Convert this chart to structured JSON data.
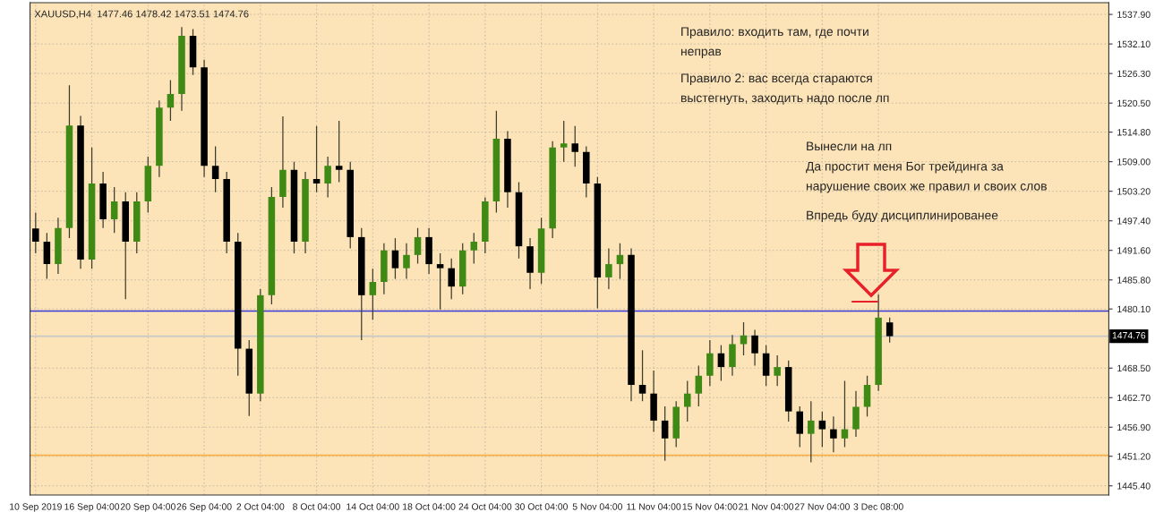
{
  "chart_data": {
    "type": "candlestick",
    "title": "XAUUSD,H4  1477.46 1478.42 1473.51 1474.76",
    "categories": [
      "10 Sep 2019",
      null,
      null,
      null,
      null,
      "16 Sep 04:00",
      null,
      null,
      null,
      null,
      "20 Sep 04:00",
      null,
      null,
      null,
      null,
      "26 Sep 04:00",
      null,
      null,
      null,
      null,
      "2 Oct 04:00",
      null,
      null,
      null,
      null,
      "8 Oct 04:00",
      null,
      null,
      null,
      null,
      "14 Oct 04:00",
      null,
      null,
      null,
      null,
      "18 Oct 04:00",
      null,
      null,
      null,
      null,
      "24 Oct 04:00",
      null,
      null,
      null,
      null,
      "30 Oct 04:00",
      null,
      null,
      null,
      null,
      "5 Nov 04:00",
      null,
      null,
      null,
      null,
      "11 Nov 04:00",
      null,
      null,
      null,
      null,
      "15 Nov 04:00",
      null,
      null,
      null,
      null,
      "21 Nov 04:00",
      null,
      null,
      null,
      null,
      "27 Nov 04:00",
      null,
      null,
      null,
      null,
      "3 Dec 08:00",
      null,
      null,
      null,
      null,
      null,
      null,
      null,
      null,
      null,
      null,
      null,
      null,
      null,
      null,
      null,
      null,
      null,
      null,
      null,
      null
    ],
    "ohlc": [
      [
        1495.9,
        1499,
        1491,
        1493.3
      ],
      [
        1493.3,
        1495,
        1486,
        1488.9
      ],
      [
        1488.9,
        1498,
        1487,
        1496.0
      ],
      [
        1496.0,
        1524.0,
        1494,
        1516.1
      ],
      [
        1516.1,
        1518,
        1488,
        1489.8
      ],
      [
        1489.8,
        1511.8,
        1488,
        1504.7
      ],
      [
        1504.7,
        1507,
        1496,
        1497.7
      ],
      [
        1497.7,
        1504,
        1495,
        1501.2
      ],
      [
        1501.2,
        1503,
        1482,
        1493.3
      ],
      [
        1493.3,
        1503,
        1491,
        1501.2
      ],
      [
        1501.2,
        1510,
        1499,
        1508.2
      ],
      [
        1508.2,
        1521,
        1506,
        1519.6
      ],
      [
        1519.6,
        1525,
        1517,
        1522.3
      ],
      [
        1522.3,
        1535.4,
        1519,
        1533.7
      ],
      [
        1533.7,
        1535,
        1526,
        1527.5
      ],
      [
        1527.5,
        1529,
        1506,
        1508.2
      ],
      [
        1508.2,
        1512,
        1503,
        1505.6
      ],
      [
        1505.6,
        1507,
        1491,
        1493.3
      ],
      [
        1493.3,
        1495,
        1467,
        1472.3
      ],
      [
        1472.3,
        1474,
        1459.1,
        1463.5
      ],
      [
        1463.5,
        1484,
        1462,
        1482.8
      ],
      [
        1482.8,
        1504,
        1481,
        1502.1
      ],
      [
        1502.1,
        1517.9,
        1500,
        1507.4
      ],
      [
        1507.4,
        1509,
        1491,
        1493.3
      ],
      [
        1493.3,
        1507,
        1491,
        1505.6
      ],
      [
        1505.6,
        1516,
        1503,
        1504.7
      ],
      [
        1504.7,
        1510,
        1502,
        1508.2
      ],
      [
        1508.2,
        1517,
        1505,
        1507.4
      ],
      [
        1507.4,
        1509,
        1492,
        1494.2
      ],
      [
        1494.2,
        1496,
        1474,
        1482.8
      ],
      [
        1482.8,
        1488,
        1478,
        1485.4
      ],
      [
        1485.4,
        1493,
        1483,
        1491.6
      ],
      [
        1491.6,
        1494,
        1486,
        1488.1
      ],
      [
        1488.1,
        1493,
        1486,
        1490.7
      ],
      [
        1490.7,
        1496,
        1489,
        1494.2
      ],
      [
        1494.2,
        1496,
        1487,
        1488.9
      ],
      [
        1488.9,
        1491,
        1480,
        1488.1
      ],
      [
        1488.1,
        1490,
        1482,
        1484.5
      ],
      [
        1484.5,
        1493,
        1483,
        1491.6
      ],
      [
        1491.6,
        1495,
        1489,
        1493.3
      ],
      [
        1493.3,
        1502,
        1491,
        1501.2
      ],
      [
        1501.2,
        1519,
        1499,
        1513.5
      ],
      [
        1513.5,
        1515,
        1500,
        1503.0
      ],
      [
        1503.0,
        1505,
        1490,
        1492.4
      ],
      [
        1492.4,
        1494,
        1484,
        1487.2
      ],
      [
        1487.2,
        1498,
        1485,
        1495.9
      ],
      [
        1495.9,
        1513,
        1494,
        1511.8
      ],
      [
        1511.8,
        1517,
        1509,
        1512.6
      ],
      [
        1512.6,
        1516,
        1508,
        1510.9
      ],
      [
        1510.9,
        1512,
        1502,
        1504.7
      ],
      [
        1504.7,
        1506,
        1480.2,
        1486.3
      ],
      [
        1486.3,
        1492,
        1484,
        1488.9
      ],
      [
        1488.9,
        1493,
        1486,
        1490.7
      ],
      [
        1490.7,
        1492,
        1462,
        1465.2
      ],
      [
        1465.2,
        1472,
        1462,
        1463.5
      ],
      [
        1463.5,
        1468,
        1456,
        1458.2
      ],
      [
        1458.2,
        1461,
        1450.3,
        1454.7
      ],
      [
        1454.7,
        1462,
        1453,
        1460.9
      ],
      [
        1460.9,
        1466,
        1458,
        1463.5
      ],
      [
        1463.5,
        1469,
        1461,
        1467.0
      ],
      [
        1467.0,
        1474,
        1465,
        1471.4
      ],
      [
        1471.4,
        1473,
        1466,
        1468.7
      ],
      [
        1468.7,
        1475,
        1467,
        1473.2
      ],
      [
        1473.2,
        1477.5,
        1471,
        1474.9
      ],
      [
        1474.9,
        1476,
        1469,
        1471.4
      ],
      [
        1471.4,
        1473,
        1465,
        1467.0
      ],
      [
        1467.0,
        1471,
        1465,
        1468.7
      ],
      [
        1468.7,
        1470,
        1458,
        1460.0
      ],
      [
        1460.0,
        1461,
        1453,
        1455.6
      ],
      [
        1455.6,
        1462,
        1450.0,
        1458.2
      ],
      [
        1458.2,
        1460,
        1453,
        1456.5
      ],
      [
        1456.5,
        1459,
        1452,
        1454.7
      ],
      [
        1454.7,
        1466,
        1453,
        1456.5
      ],
      [
        1456.5,
        1464,
        1455,
        1460.9
      ],
      [
        1460.9,
        1467,
        1459,
        1465.2
      ],
      [
        1465.2,
        1483,
        1464,
        1478.4
      ],
      [
        1477.46,
        1478.42,
        1473.51,
        1474.76
      ],
      null,
      null,
      null,
      null,
      null,
      null,
      null,
      null,
      null,
      null,
      null,
      null,
      null,
      null,
      null,
      null,
      null,
      null,
      null
    ],
    "ylim": [
      1443.6,
      1540.2
    ],
    "yticks": [
      {
        "value": 1537.9,
        "label": "1537.90"
      },
      {
        "value": 1532.1,
        "label": "1532.10"
      },
      {
        "value": 1526.3,
        "label": "1526.30"
      },
      {
        "value": 1520.5,
        "label": "1520.50"
      },
      {
        "value": 1514.8,
        "label": "1514.80"
      },
      {
        "value": 1509.0,
        "label": "1509.00"
      },
      {
        "value": 1503.2,
        "label": "1503.20"
      },
      {
        "value": 1497.4,
        "label": "1497.40"
      },
      {
        "value": 1491.6,
        "label": "1491.60"
      },
      {
        "value": 1485.8,
        "label": "1485.80"
      },
      {
        "value": 1480.1,
        "label": "1480.10"
      },
      {
        "value": 1468.5,
        "label": "1468.50"
      },
      {
        "value": 1462.7,
        "label": "1462.70"
      },
      {
        "value": 1456.9,
        "label": "1456.90"
      },
      {
        "value": 1451.2,
        "label": "1451.20"
      },
      {
        "value": 1445.4,
        "label": "1445.40"
      }
    ],
    "grid": true,
    "ref_lines": [
      {
        "axis": "y",
        "value": 1479.7,
        "color": "#3a3ad8"
      },
      {
        "axis": "y",
        "value": 1451.4,
        "color": "#f7b04a"
      },
      {
        "axis": "y",
        "value": 1474.76,
        "label": "1474.76",
        "color": "#c8c8c8"
      }
    ],
    "annotations": [
      "Правило: входить там, где почти\nнеправ",
      "Правило 2: вас всегда стараются\nвыстегнуть, заходить надо после лп",
      "Вынесли на лп\nДа простит меня Бог трейдинга за\nнарушение своих же правил и своих слов",
      "Впредь буду дисциплинированее"
    ]
  }
}
